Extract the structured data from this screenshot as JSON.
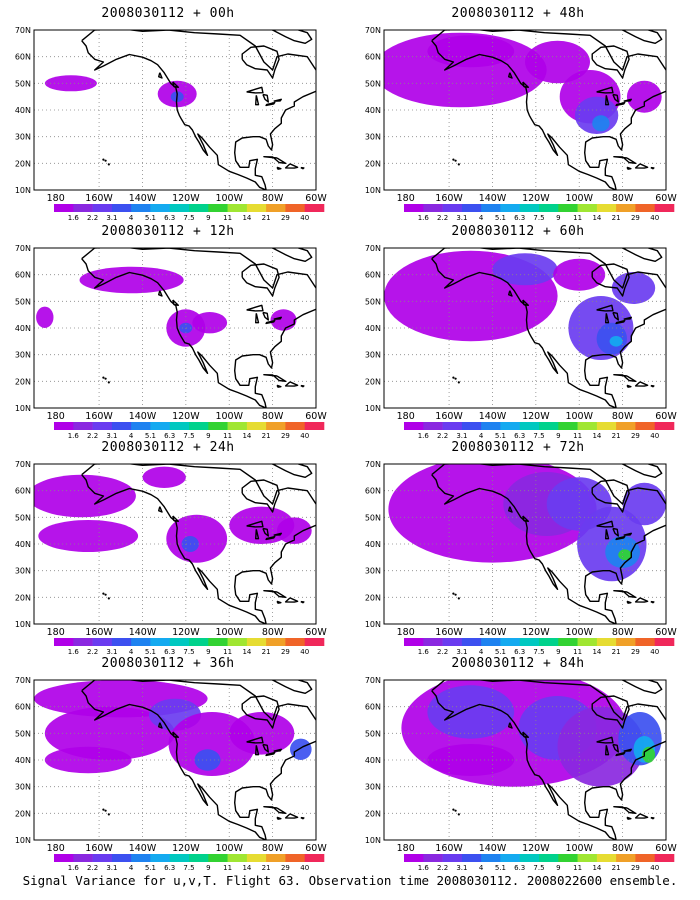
{
  "caption": "Signal Variance for u,v,T. Flight 63. Observation time 2008030112. 2008022600 ensemble.",
  "colorbar": {
    "labels": [
      "1.6",
      "2.2",
      "3.1",
      "4",
      "5.1",
      "6.3",
      "7.5",
      "9",
      "11",
      "14",
      "21",
      "29",
      "40"
    ],
    "colors": [
      "#b000e8",
      "#8a28e0",
      "#6a3cf0",
      "#3c50f0",
      "#1e82f0",
      "#14aaf0",
      "#00c8c0",
      "#00d28c",
      "#32d232",
      "#a0e632",
      "#e6dc32",
      "#f0a028",
      "#f06428",
      "#f0285a"
    ]
  },
  "axes": {
    "lat_labels": [
      "70N",
      "60N",
      "50N",
      "40N",
      "30N",
      "20N",
      "10N"
    ],
    "lon_labels": [
      "180",
      "160W",
      "140W",
      "120W",
      "100W",
      "80W",
      "60W"
    ]
  },
  "panels": [
    {
      "title": "2008030112 + 00h"
    },
    {
      "title": "2008030112 + 48h"
    },
    {
      "title": "2008030112 + 12h"
    },
    {
      "title": "2008030112 + 60h"
    },
    {
      "title": "2008030112 + 24h"
    },
    {
      "title": "2008030112 + 72h"
    },
    {
      "title": "2008030112 + 36h"
    },
    {
      "title": "2008030112 + 84h"
    }
  ]
}
